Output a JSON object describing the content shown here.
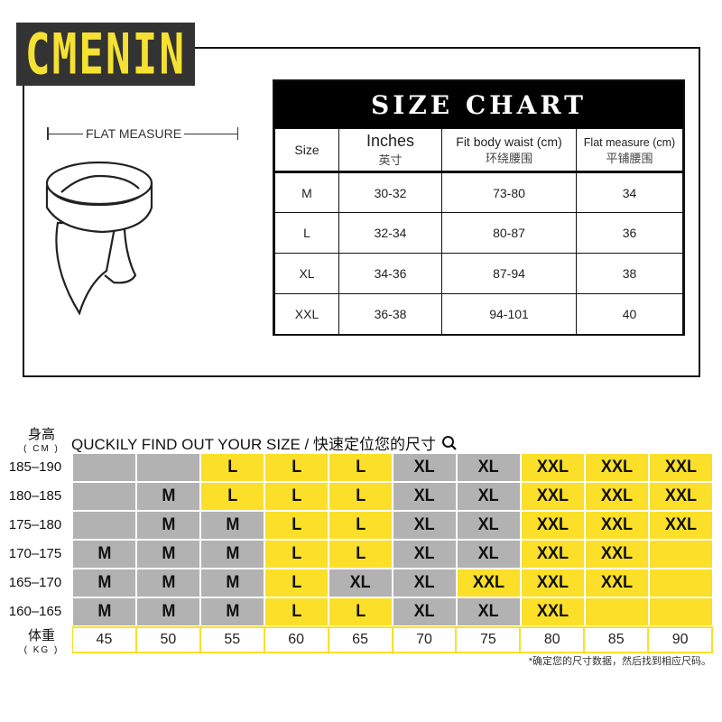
{
  "brand": {
    "logo": "CMENIN",
    "color": "#f5e132",
    "bg": "#333333"
  },
  "diagram": {
    "label": "FLAT MEASURE"
  },
  "size_chart": {
    "title": "SIZE CHART",
    "headers": [
      {
        "en": "Size",
        "cn": ""
      },
      {
        "en": "Inches",
        "cn": "英寸"
      },
      {
        "en": "Fit body waist (cm)",
        "cn": "环绕腰围"
      },
      {
        "en": "Flat measure (cm)",
        "cn": "平铺腰围"
      }
    ],
    "rows": [
      [
        "M",
        "30-32",
        "73-80",
        "34"
      ],
      [
        "L",
        "32-34",
        "80-87",
        "36"
      ],
      [
        "XL",
        "34-36",
        "87-94",
        "38"
      ],
      [
        "XXL",
        "36-38",
        "94-101",
        "40"
      ]
    ]
  },
  "finder": {
    "height_label": "身高",
    "height_unit": "( CM )",
    "weight_label": "体重",
    "weight_unit": "( KG )",
    "title": "QUCKILY FIND OUT YOUR SIZE / 快速定位您的尺寸",
    "icon": "search-icon",
    "colors": {
      "gray": "#b2b2b2",
      "yellow": "#fbdf28"
    },
    "weights": [
      "45",
      "50",
      "55",
      "60",
      "65",
      "70",
      "75",
      "80",
      "85",
      "90"
    ],
    "rows": [
      {
        "height": "185–190",
        "sizes": [
          "",
          "",
          "L",
          "L",
          "L",
          "XL",
          "XL",
          "XXL",
          "XXL",
          "XXL"
        ],
        "tones": [
          "gray",
          "gray",
          "yellow",
          "yellow",
          "yellow",
          "gray",
          "gray",
          "yellow",
          "yellow",
          "yellow"
        ]
      },
      {
        "height": "180–185",
        "sizes": [
          "",
          "M",
          "L",
          "L",
          "L",
          "XL",
          "XL",
          "XXL",
          "XXL",
          "XXL"
        ],
        "tones": [
          "gray",
          "gray",
          "yellow",
          "yellow",
          "yellow",
          "gray",
          "gray",
          "yellow",
          "yellow",
          "yellow"
        ]
      },
      {
        "height": "175–180",
        "sizes": [
          "",
          "M",
          "M",
          "L",
          "L",
          "XL",
          "XL",
          "XXL",
          "XXL",
          "XXL"
        ],
        "tones": [
          "gray",
          "gray",
          "gray",
          "yellow",
          "yellow",
          "gray",
          "gray",
          "yellow",
          "yellow",
          "yellow"
        ]
      },
      {
        "height": "170–175",
        "sizes": [
          "M",
          "M",
          "M",
          "L",
          "L",
          "XL",
          "XL",
          "XXL",
          "XXL",
          ""
        ],
        "tones": [
          "gray",
          "gray",
          "gray",
          "yellow",
          "yellow",
          "gray",
          "gray",
          "yellow",
          "yellow",
          "yellow"
        ]
      },
      {
        "height": "165–170",
        "sizes": [
          "M",
          "M",
          "M",
          "L",
          "XL",
          "XL",
          "XXL",
          "XXL",
          "XXL",
          ""
        ],
        "tones": [
          "gray",
          "gray",
          "gray",
          "yellow",
          "gray",
          "gray",
          "yellow",
          "yellow",
          "yellow",
          "yellow"
        ]
      },
      {
        "height": "160–165",
        "sizes": [
          "M",
          "M",
          "M",
          "L",
          "L",
          "XL",
          "XL",
          "XXL",
          "",
          ""
        ],
        "tones": [
          "gray",
          "gray",
          "gray",
          "yellow",
          "yellow",
          "gray",
          "gray",
          "yellow",
          "yellow",
          "yellow"
        ]
      }
    ],
    "note": "*确定您的尺寸数据，然后找到相应尺码。"
  }
}
